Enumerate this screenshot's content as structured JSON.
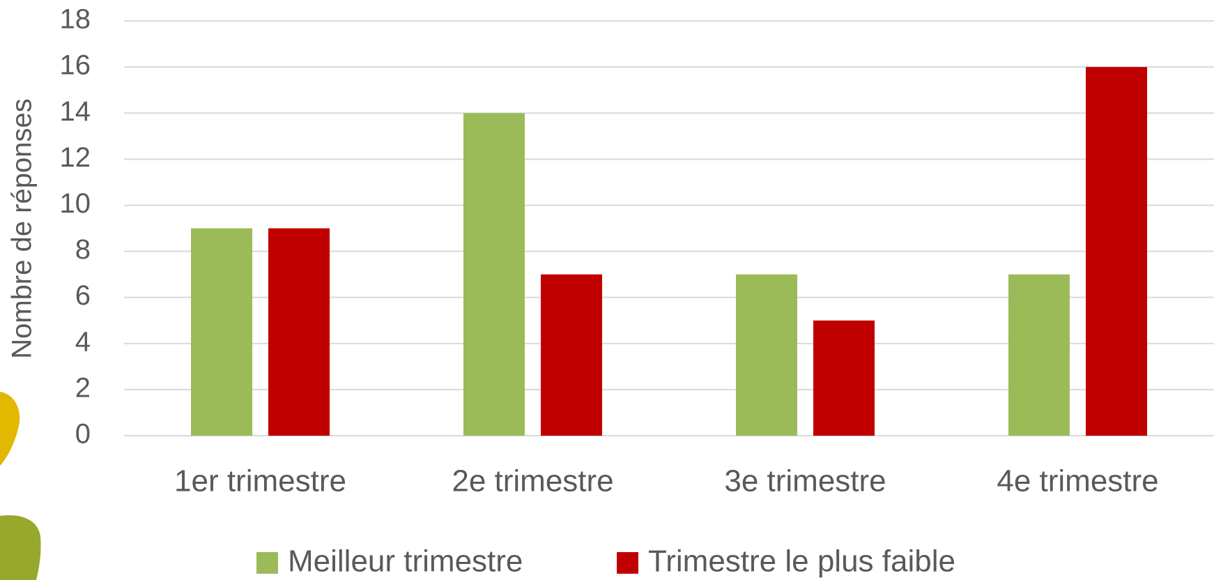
{
  "chart_data": {
    "type": "bar",
    "y_label": "Nombre de réponses",
    "categories": [
      "1er trimestre",
      "2e trimestre",
      "3e trimestre",
      "4e trimestre"
    ],
    "series": [
      {
        "name": "Meilleur trimestre",
        "color": "#9bbb59",
        "values": [
          9,
          14,
          7,
          7
        ]
      },
      {
        "name": "Trimestre le plus faible",
        "color": "#c00000",
        "values": [
          9,
          7,
          5,
          16
        ]
      }
    ],
    "ylim": [
      0,
      18
    ],
    "yticks": [
      0,
      2,
      4,
      6,
      8,
      10,
      12,
      14,
      16,
      18
    ],
    "grid": true,
    "legend": "bottom"
  }
}
